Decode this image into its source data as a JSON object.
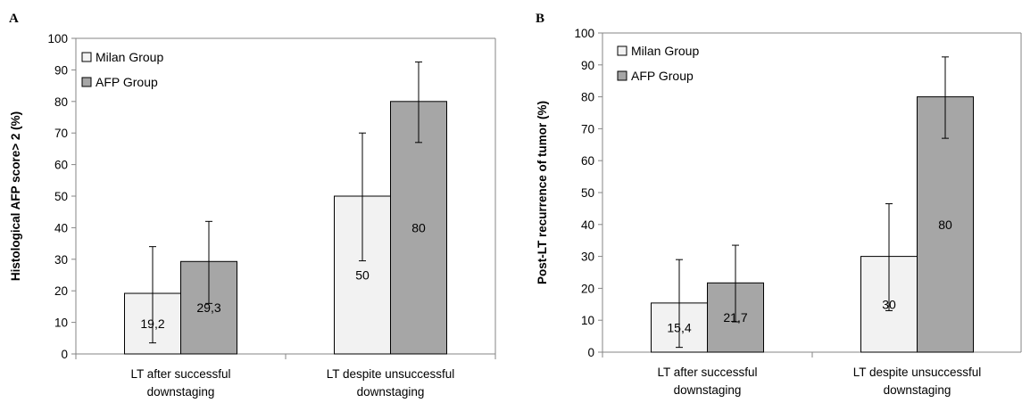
{
  "chart_data": [
    {
      "type": "bar",
      "panel": "A",
      "ylabel": "Histological AFP score> 2 (%)",
      "ylim": [
        0,
        100
      ],
      "yticks": [
        0,
        10,
        20,
        30,
        40,
        50,
        60,
        70,
        80,
        90,
        100
      ],
      "categories": [
        [
          "LT after successful",
          "downstaging"
        ],
        [
          "LT despite unsuccessful",
          "downstaging"
        ]
      ],
      "legend_position": "top-left",
      "series": [
        {
          "name": "Milan Group",
          "color": "#f2f2f2",
          "values": [
            19.2,
            50
          ],
          "labels": [
            "19,2",
            "50"
          ],
          "err_low": [
            3.5,
            29.5
          ],
          "err_high": [
            34,
            70
          ]
        },
        {
          "name": "AFP Group",
          "color": "#a6a6a6",
          "values": [
            29.3,
            80
          ],
          "labels": [
            "29,3",
            "80"
          ],
          "err_low": [
            16,
            67
          ],
          "err_high": [
            42,
            92.5
          ]
        }
      ]
    },
    {
      "type": "bar",
      "panel": "B",
      "ylabel": "Post-LT recurrence of tumor (%)",
      "ylim": [
        0,
        100
      ],
      "yticks": [
        0,
        10,
        20,
        30,
        40,
        50,
        60,
        70,
        80,
        90,
        100
      ],
      "categories": [
        [
          "LT after successful",
          "downstaging"
        ],
        [
          "LT despite unsuccessful",
          "downstaging"
        ]
      ],
      "legend_position": "top-left",
      "series": [
        {
          "name": "Milan Group",
          "color": "#f2f2f2",
          "values": [
            15.4,
            30
          ],
          "labels": [
            "15,4",
            "30"
          ],
          "err_low": [
            1.5,
            13
          ],
          "err_high": [
            29,
            46.5
          ]
        },
        {
          "name": "AFP Group",
          "color": "#a6a6a6",
          "values": [
            21.7,
            80
          ],
          "labels": [
            "21,7",
            "80"
          ],
          "err_low": [
            9.5,
            67
          ],
          "err_high": [
            33.5,
            92.5
          ]
        }
      ]
    }
  ]
}
